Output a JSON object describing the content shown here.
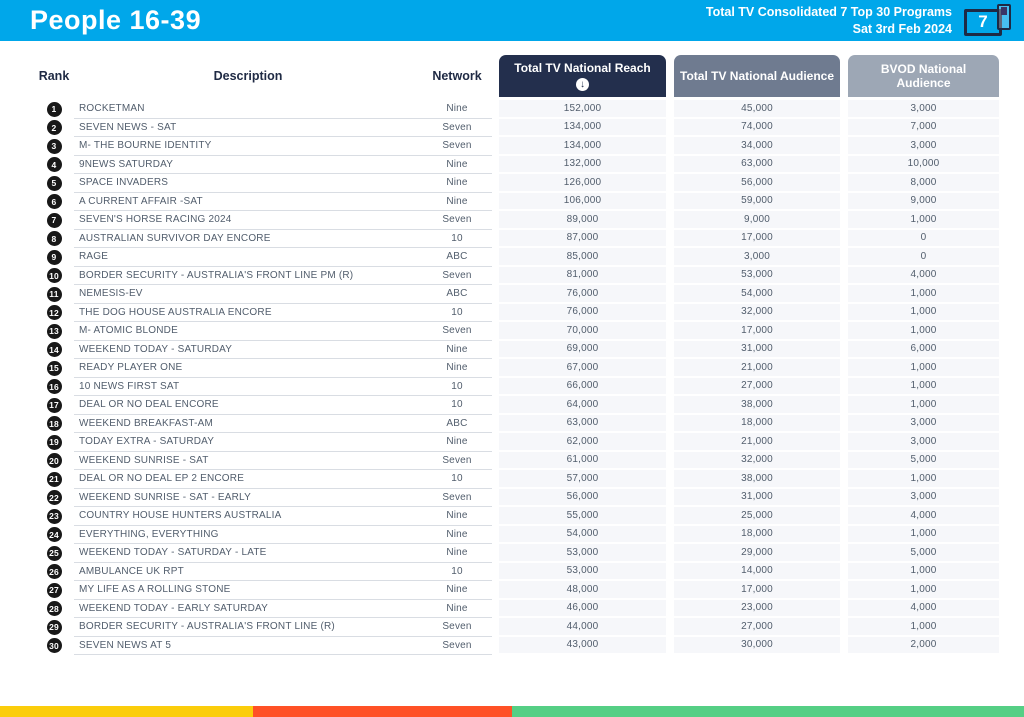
{
  "header": {
    "title": "People 16-39",
    "subtitle_line1": "Total TV Consolidated 7 Top 30 Programs",
    "subtitle_line2": "Sat 3rd Feb 2024",
    "badge_number": "7"
  },
  "table": {
    "columns": {
      "rank": "Rank",
      "description": "Description",
      "network": "Network",
      "reach": "Total TV National Reach",
      "audience": "Total TV National Audience",
      "bvod": "BVOD National Audience"
    },
    "sort_icon": "↓",
    "rows": [
      {
        "rank": 1,
        "description": "ROCKETMAN",
        "network": "Nine",
        "reach": "152,000",
        "audience": "45,000",
        "bvod": "3,000"
      },
      {
        "rank": 2,
        "description": "SEVEN NEWS - SAT",
        "network": "Seven",
        "reach": "134,000",
        "audience": "74,000",
        "bvod": "7,000"
      },
      {
        "rank": 3,
        "description": "M- THE BOURNE IDENTITY",
        "network": "Seven",
        "reach": "134,000",
        "audience": "34,000",
        "bvod": "3,000"
      },
      {
        "rank": 4,
        "description": "9NEWS SATURDAY",
        "network": "Nine",
        "reach": "132,000",
        "audience": "63,000",
        "bvod": "10,000"
      },
      {
        "rank": 5,
        "description": "SPACE INVADERS",
        "network": "Nine",
        "reach": "126,000",
        "audience": "56,000",
        "bvod": "8,000"
      },
      {
        "rank": 6,
        "description": "A CURRENT AFFAIR -SAT",
        "network": "Nine",
        "reach": "106,000",
        "audience": "59,000",
        "bvod": "9,000"
      },
      {
        "rank": 7,
        "description": "SEVEN'S HORSE RACING 2024",
        "network": "Seven",
        "reach": "89,000",
        "audience": "9,000",
        "bvod": "1,000"
      },
      {
        "rank": 8,
        "description": "AUSTRALIAN SURVIVOR DAY ENCORE",
        "network": "10",
        "reach": "87,000",
        "audience": "17,000",
        "bvod": "0"
      },
      {
        "rank": 9,
        "description": "RAGE",
        "network": "ABC",
        "reach": "85,000",
        "audience": "3,000",
        "bvod": "0"
      },
      {
        "rank": 10,
        "description": "BORDER SECURITY - AUSTRALIA'S FRONT LINE PM (R)",
        "network": "Seven",
        "reach": "81,000",
        "audience": "53,000",
        "bvod": "4,000"
      },
      {
        "rank": 11,
        "description": "NEMESIS-EV",
        "network": "ABC",
        "reach": "76,000",
        "audience": "54,000",
        "bvod": "1,000"
      },
      {
        "rank": 12,
        "description": "THE DOG HOUSE AUSTRALIA ENCORE",
        "network": "10",
        "reach": "76,000",
        "audience": "32,000",
        "bvod": "1,000"
      },
      {
        "rank": 13,
        "description": "M- ATOMIC BLONDE",
        "network": "Seven",
        "reach": "70,000",
        "audience": "17,000",
        "bvod": "1,000"
      },
      {
        "rank": 14,
        "description": "WEEKEND TODAY - SATURDAY",
        "network": "Nine",
        "reach": "69,000",
        "audience": "31,000",
        "bvod": "6,000"
      },
      {
        "rank": 15,
        "description": "READY PLAYER ONE",
        "network": "Nine",
        "reach": "67,000",
        "audience": "21,000",
        "bvod": "1,000"
      },
      {
        "rank": 16,
        "description": "10 NEWS FIRST SAT",
        "network": "10",
        "reach": "66,000",
        "audience": "27,000",
        "bvod": "1,000"
      },
      {
        "rank": 17,
        "description": "DEAL OR NO DEAL ENCORE",
        "network": "10",
        "reach": "64,000",
        "audience": "38,000",
        "bvod": "1,000"
      },
      {
        "rank": 18,
        "description": "WEEKEND BREAKFAST-AM",
        "network": "ABC",
        "reach": "63,000",
        "audience": "18,000",
        "bvod": "3,000"
      },
      {
        "rank": 19,
        "description": "TODAY EXTRA - SATURDAY",
        "network": "Nine",
        "reach": "62,000",
        "audience": "21,000",
        "bvod": "3,000"
      },
      {
        "rank": 20,
        "description": "WEEKEND SUNRISE - SAT",
        "network": "Seven",
        "reach": "61,000",
        "audience": "32,000",
        "bvod": "5,000"
      },
      {
        "rank": 21,
        "description": "DEAL OR NO DEAL EP 2 ENCORE",
        "network": "10",
        "reach": "57,000",
        "audience": "38,000",
        "bvod": "1,000"
      },
      {
        "rank": 22,
        "description": "WEEKEND SUNRISE - SAT - EARLY",
        "network": "Seven",
        "reach": "56,000",
        "audience": "31,000",
        "bvod": "3,000"
      },
      {
        "rank": 23,
        "description": "COUNTRY HOUSE HUNTERS AUSTRALIA",
        "network": "Nine",
        "reach": "55,000",
        "audience": "25,000",
        "bvod": "4,000"
      },
      {
        "rank": 24,
        "description": "EVERYTHING, EVERYTHING",
        "network": "Nine",
        "reach": "54,000",
        "audience": "18,000",
        "bvod": "1,000"
      },
      {
        "rank": 25,
        "description": "WEEKEND TODAY - SATURDAY - LATE",
        "network": "Nine",
        "reach": "53,000",
        "audience": "29,000",
        "bvod": "5,000"
      },
      {
        "rank": 26,
        "description": "AMBULANCE UK RPT",
        "network": "10",
        "reach": "53,000",
        "audience": "14,000",
        "bvod": "1,000"
      },
      {
        "rank": 27,
        "description": "MY LIFE AS A ROLLING STONE",
        "network": "Nine",
        "reach": "48,000",
        "audience": "17,000",
        "bvod": "1,000"
      },
      {
        "rank": 28,
        "description": "WEEKEND TODAY - EARLY SATURDAY",
        "network": "Nine",
        "reach": "46,000",
        "audience": "23,000",
        "bvod": "4,000"
      },
      {
        "rank": 29,
        "description": "BORDER SECURITY - AUSTRALIA'S FRONT LINE (R)",
        "network": "Seven",
        "reach": "44,000",
        "audience": "27,000",
        "bvod": "1,000"
      },
      {
        "rank": 30,
        "description": "SEVEN NEWS AT 5",
        "network": "Seven",
        "reach": "43,000",
        "audience": "30,000",
        "bvod": "2,000"
      }
    ]
  },
  "colors": {
    "blue": "#00A7EA",
    "navy": "#232F4D",
    "head2": "#6F7B90",
    "head3": "#9DA7B5",
    "cellbg": "#F6F7FA",
    "line": "#D9DDE3",
    "text": "#515D6C",
    "titlenavy": "#1F2A44",
    "badge": "#181818",
    "yellow": "#FBCD0B",
    "red": "#FF5126",
    "green": "#55CF85"
  },
  "footer": {
    "segments": [
      {
        "name": "yellow",
        "width_pct": 24.7
      },
      {
        "name": "red",
        "width_pct": 25.3
      },
      {
        "name": "green",
        "width_pct": 50.0
      }
    ]
  }
}
